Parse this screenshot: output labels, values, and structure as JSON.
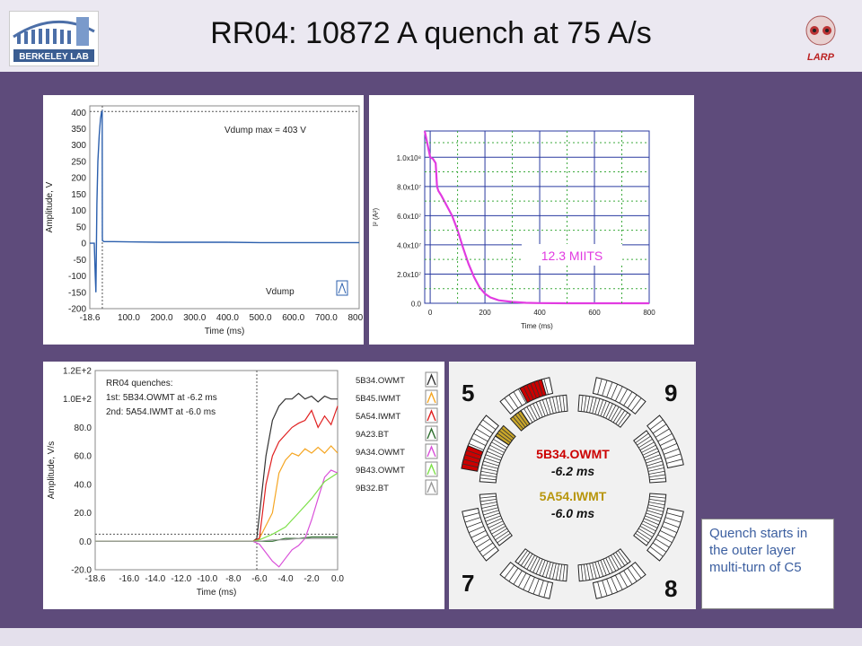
{
  "title": "RR04: 10872 A quench at 75 A/s",
  "logos": {
    "berkeley": "BERKELEY LAB",
    "larp": "LARP"
  },
  "colors": {
    "purple_bg": "#5e4b7b",
    "note_text": "#3c5fa0",
    "accent_red": "#cc0000",
    "accent_gold": "#b8960c"
  },
  "charts": [
    {
      "type": "line",
      "xlabel": "Time (ms)",
      "ylabel": "Amplitude, V",
      "yticks": [
        "400",
        "350",
        "300",
        "250",
        "200",
        "150",
        "100",
        "50",
        "0",
        "-50",
        "-100",
        "-150",
        "-200"
      ],
      "xticks": [
        "-18.6",
        "100.0",
        "200.0",
        "300.0",
        "400.0",
        "500.0",
        "600.0",
        "700.0",
        "800.0"
      ],
      "xlim": [
        -18.6,
        800
      ],
      "ylim": [
        -200,
        420
      ],
      "annotation": "Vdump max = 403 V",
      "series": [
        {
          "name": "Vdump",
          "color": "#2b5fad",
          "x": [
            -18.6,
            -5,
            -2,
            0,
            3,
            6,
            10,
            14,
            17,
            19,
            19.5,
            20,
            25,
            50,
            100,
            200,
            300,
            400,
            500,
            600,
            700,
            800
          ],
          "y": [
            0,
            0,
            -100,
            -150,
            120,
            250,
            330,
            380,
            400,
            403,
            20,
            8,
            5,
            5,
            4,
            3,
            3,
            3,
            2,
            2,
            2,
            2
          ]
        }
      ]
    },
    {
      "type": "line",
      "xlabel": "Time (ms)",
      "ylabel": "I² (A²)",
      "yticks": [
        "1.0x10⁸",
        "8.0x10⁷",
        "6.0x10⁷",
        "4.0x10⁷",
        "2.0x10⁷",
        "0.0"
      ],
      "xticks": [
        "0",
        "200",
        "400",
        "600",
        "800"
      ],
      "xlim": [
        -20,
        800
      ],
      "ylim": [
        0,
        118000000
      ],
      "annotation": "12.3 MIITS",
      "series": [
        {
          "name": "I²",
          "color": "#e13be1",
          "x": [
            -20,
            0,
            10,
            20,
            25,
            30,
            40,
            60,
            80,
            100,
            120,
            140,
            160,
            180,
            200,
            220,
            250,
            300,
            350,
            400,
            500,
            600,
            700,
            800
          ],
          "y": [
            118000000,
            100000000,
            99000000,
            96000000,
            80000000,
            77000000,
            74000000,
            67000000,
            60000000,
            50000000,
            38000000,
            27000000,
            18000000,
            11000000,
            6500000,
            4000000,
            2000000,
            900000,
            300000,
            100000,
            20000,
            0,
            0,
            0
          ]
        }
      ]
    },
    {
      "type": "line",
      "title": "RR04 quenches:",
      "subtitle_lines": [
        "1st: 5B34.OWMT at -6.2 ms",
        "2nd: 5A54.IWMT at -6.0 ms"
      ],
      "xlabel": "Time (ms)",
      "ylabel": "Amplitude, V/s",
      "yticks": [
        "1.2E+2",
        "1.0E+2",
        "80.0",
        "60.0",
        "40.0",
        "20.0",
        "0.0",
        "-20.0"
      ],
      "xticks": [
        "-18.6",
        "-16.0",
        "-14.0",
        "-12.0",
        "-10.0",
        "-8.0",
        "-6.0",
        "-4.0",
        "-2.0",
        "0.0"
      ],
      "xlim": [
        -18.6,
        0
      ],
      "ylim": [
        -20,
        120
      ],
      "legend_position": "right",
      "series": [
        {
          "name": "5B34.OWMT",
          "color": "#333333",
          "x": [
            -18.6,
            -10,
            -6.5,
            -6.2,
            -5.5,
            -5,
            -4.5,
            -4,
            -3.5,
            -3,
            -2.5,
            -2,
            -1.5,
            -1,
            -0.5,
            0
          ],
          "y": [
            0,
            0,
            0,
            2,
            60,
            85,
            95,
            100,
            100,
            104,
            100,
            102,
            98,
            102,
            100,
            100
          ]
        },
        {
          "name": "5B45.IWMT",
          "color": "#f5a623",
          "x": [
            -18.6,
            -10,
            -6.5,
            -6,
            -5,
            -4.5,
            -4,
            -3.5,
            -3,
            -2.5,
            -2,
            -1.5,
            -1,
            -0.5,
            0
          ],
          "y": [
            0,
            0,
            0,
            2,
            20,
            48,
            57,
            62,
            60,
            65,
            62,
            66,
            62,
            67,
            62
          ]
        },
        {
          "name": "5A54.IWMT",
          "color": "#e02020",
          "x": [
            -18.6,
            -10,
            -6.5,
            -6,
            -5.5,
            -5,
            -4.5,
            -4,
            -3.5,
            -3,
            -2.5,
            -2,
            -1.5,
            -1,
            -0.5,
            0
          ],
          "y": [
            0,
            0,
            0,
            2,
            40,
            60,
            70,
            75,
            80,
            83,
            85,
            92,
            80,
            88,
            82,
            95
          ]
        },
        {
          "name": "9A23.BT",
          "color": "#2e6e2e",
          "x": [
            -18.6,
            -10,
            -6,
            -5,
            -4,
            -3,
            -2,
            -1,
            0
          ],
          "y": [
            0,
            0,
            0,
            0,
            2,
            2,
            3,
            3,
            3
          ]
        },
        {
          "name": "9A34.OWMT",
          "color": "#d94fd9",
          "x": [
            -18.6,
            -10,
            -6.5,
            -6,
            -5,
            -4.5,
            -4,
            -3.5,
            -3,
            -2.5,
            -2,
            -1.5,
            -1,
            -0.5,
            0
          ],
          "y": [
            0,
            0,
            0,
            -2,
            -14,
            -18,
            -12,
            -6,
            -3,
            2,
            15,
            30,
            45,
            50,
            48
          ]
        },
        {
          "name": "9B43.OWMT",
          "color": "#7ee04a",
          "x": [
            -18.6,
            -10,
            -6.5,
            -6,
            -5,
            -4,
            -3,
            -2,
            -1,
            0
          ],
          "y": [
            0,
            0,
            0,
            1,
            5,
            10,
            20,
            30,
            42,
            48
          ]
        },
        {
          "name": "9B32.BT",
          "color": "#999999",
          "x": [
            -18.6,
            -10,
            -6,
            -5,
            -4,
            -3,
            -2,
            -1,
            0
          ],
          "y": [
            0,
            0,
            0,
            1,
            1,
            2,
            2,
            2,
            2
          ]
        }
      ]
    }
  ],
  "cross_section": {
    "quadrant_labels": [
      "5",
      "9",
      "7",
      "8"
    ],
    "label_1": "5B34.OWMT",
    "time_1": "-6.2 ms",
    "label_2": "5A54.IWMT",
    "time_2": "-6.0 ms"
  },
  "note": "Quench starts in the outer layer multi-turn of C5"
}
